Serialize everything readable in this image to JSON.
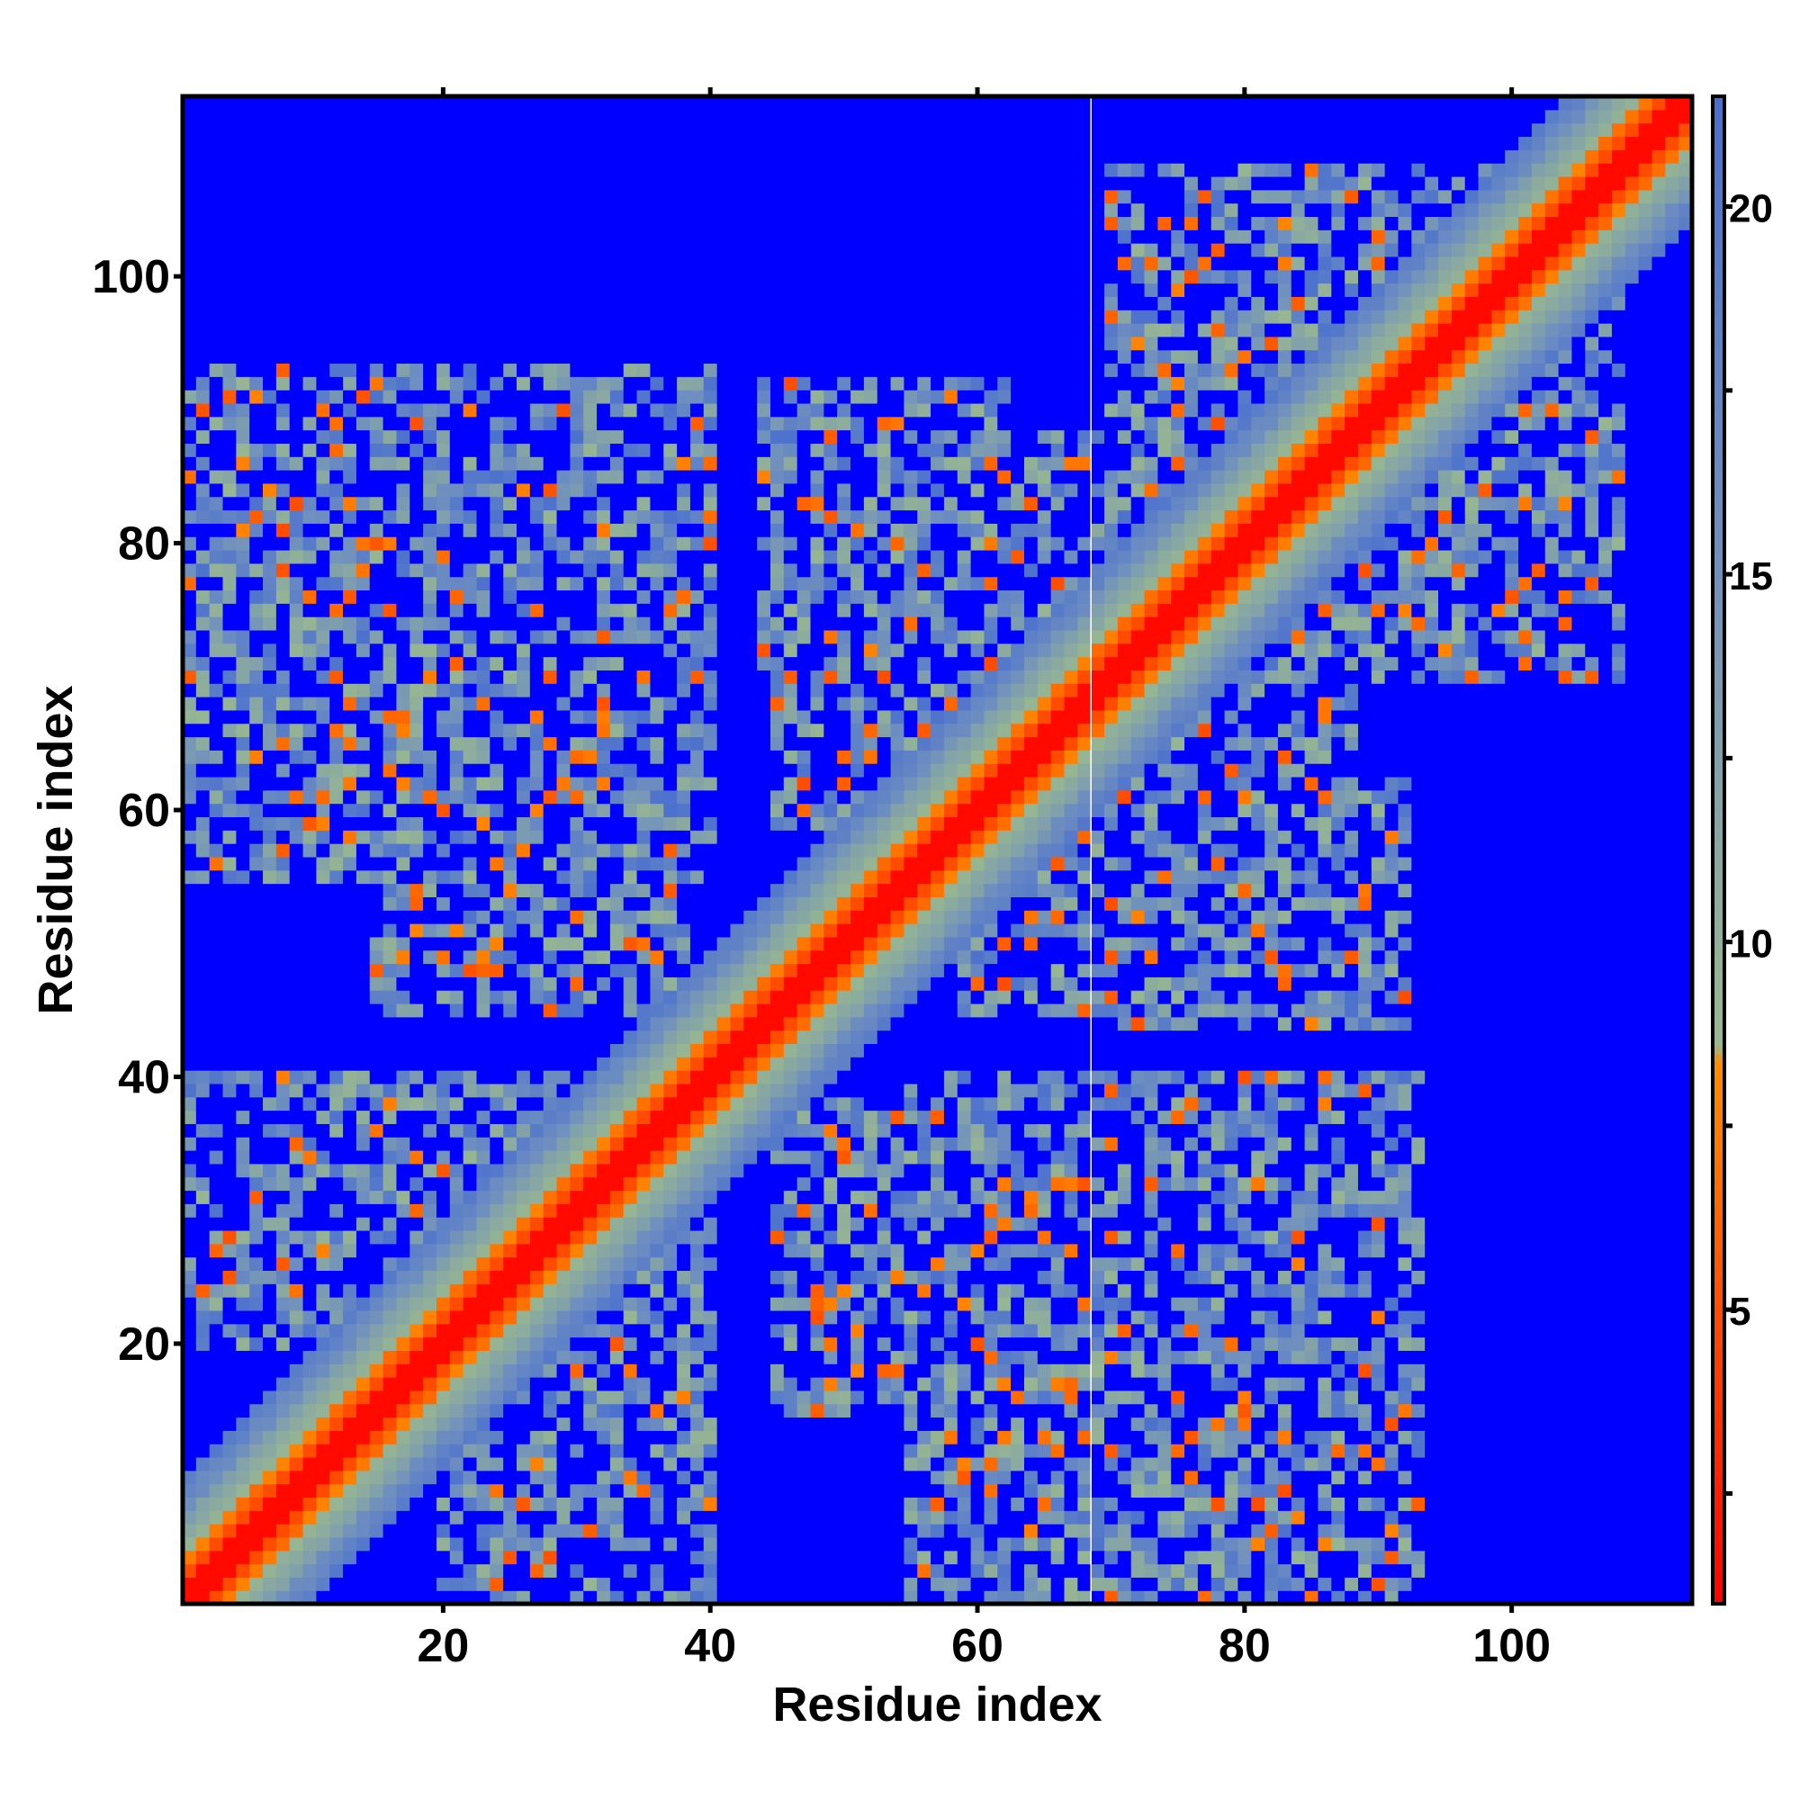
{
  "chart_data": {
    "type": "heatmap",
    "title": "",
    "xlabel": "Residue index",
    "ylabel": "Residue index",
    "n_residues": 113,
    "xlim": [
      1,
      113
    ],
    "ylim": [
      1,
      113
    ],
    "x_ticks": [
      20,
      40,
      60,
      80,
      100
    ],
    "y_ticks": [
      20,
      40,
      60,
      80,
      100
    ],
    "colorbar": {
      "ticks": [
        5,
        10,
        15,
        20
      ],
      "range": [
        1,
        21.5
      ],
      "colors": {
        "0": "#ff0000",
        "0.36": "#ff8c00",
        "0.37": "#99b88f",
        "0.7": "#6f8fbf",
        "1": "#4a6fcf"
      }
    },
    "background_value": 22,
    "background_color": "#0000ff",
    "missing_residue_line": 69,
    "structure": {
      "diagonal_band_width": 6,
      "contact_blocks": [
        {
          "x": [
            1,
            40
          ],
          "y": [
            55,
            93
          ]
        },
        {
          "x": [
            20,
            40
          ],
          "y": [
            1,
            35
          ]
        },
        {
          "x": [
            45,
            70
          ],
          "y": [
            57,
            88
          ]
        },
        {
          "x": [
            70,
            92
          ],
          "y": [
            44,
            62
          ]
        },
        {
          "x": [
            45,
            70
          ],
          "y": [
            15,
            38
          ]
        },
        {
          "x": [
            68,
            92
          ],
          "y": [
            1,
            38
          ]
        },
        {
          "x": [
            70,
            100
          ],
          "y": [
            82,
            108
          ]
        }
      ]
    }
  }
}
